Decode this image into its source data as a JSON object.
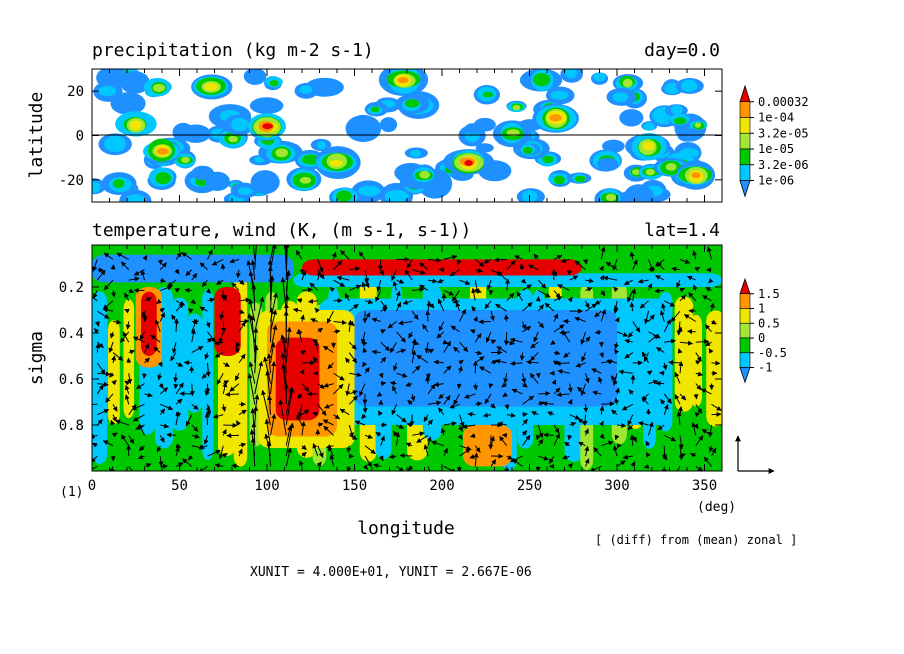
{
  "chart_data": [
    {
      "type": "heatmap",
      "title": "precipitation (kg m-2 s-1)",
      "right_title": "day=0.0",
      "xlabel": "",
      "ylabel": "latitude",
      "xlim": [
        0,
        360
      ],
      "ylim": [
        -30,
        30
      ],
      "yticks": [
        "20",
        "0",
        "-20"
      ],
      "ytick_values": [
        20,
        0,
        -20
      ],
      "colorbar": {
        "labels": [
          "0.00032",
          "1e-04",
          "3.2e-05",
          "1e-05",
          "3.2e-06",
          "1e-06"
        ],
        "colors": [
          "#1e90ff",
          "#00c8ff",
          "#00c800",
          "#a0e632",
          "#f0e600",
          "#ff9600",
          "#e60000"
        ]
      },
      "features": [
        {
          "lon": 25,
          "lat": 5,
          "value": 0.0001
        },
        {
          "lon": 40,
          "lat": -7,
          "value": 0.0002
        },
        {
          "lon": 68,
          "lat": 22,
          "value": 0.0001
        },
        {
          "lon": 100,
          "lat": 4,
          "value": 0.00032
        },
        {
          "lon": 140,
          "lat": -12,
          "value": 0.0001
        },
        {
          "lon": 178,
          "lat": 25,
          "value": 0.0002
        },
        {
          "lon": 215,
          "lat": -12,
          "value": 0.00032
        },
        {
          "lon": 265,
          "lat": 8,
          "value": 0.0002
        },
        {
          "lon": 318,
          "lat": -5,
          "value": 0.0001
        },
        {
          "lon": 345,
          "lat": -18,
          "value": 0.0002
        }
      ]
    },
    {
      "type": "heatmap",
      "title": "temperature, wind (K, (m s-1, s-1))",
      "right_title": "lat=1.4",
      "xlabel": "longitude",
      "xunit": "(deg)",
      "ylabel": "sigma",
      "xlim": [
        0,
        360
      ],
      "ylim": [
        1.0,
        0.0
      ],
      "xticks": [
        "0",
        "50",
        "100",
        "150",
        "200",
        "250",
        "300",
        "350"
      ],
      "xtick_values": [
        0,
        50,
        100,
        150,
        200,
        250,
        300,
        350
      ],
      "yticks": [
        "0.2",
        "0.4",
        "0.6",
        "0.8"
      ],
      "ytick_values": [
        0.2,
        0.4,
        0.6,
        0.8
      ],
      "colorbar": {
        "labels": [
          "1.5",
          "1",
          "0.5",
          "0",
          "-0.5",
          "-1"
        ],
        "colors": [
          "#1e90ff",
          "#00c8ff",
          "#00c800",
          "#a0e632",
          "#f0e600",
          "#ff9600",
          "#e60000"
        ]
      },
      "features": [
        {
          "lon": 50,
          "sigma": 0.1,
          "value": -1.5
        },
        {
          "lon": 200,
          "sigma": 0.12,
          "value": 2.0
        },
        {
          "lon": 120,
          "sigma": 0.55,
          "value": 2.0
        },
        {
          "lon": 220,
          "sigma": 0.6,
          "value": -1.2
        },
        {
          "lon": 35,
          "sigma": 0.3,
          "value": 1.5
        },
        {
          "lon": 230,
          "sigma": 0.9,
          "value": 1.5
        }
      ]
    }
  ],
  "figure": {
    "frame_label": "(1)",
    "note": "[ (diff) from (mean) zonal ]",
    "units": "XUNIT = 4.000E+01, YUNIT = 2.667E-06"
  }
}
